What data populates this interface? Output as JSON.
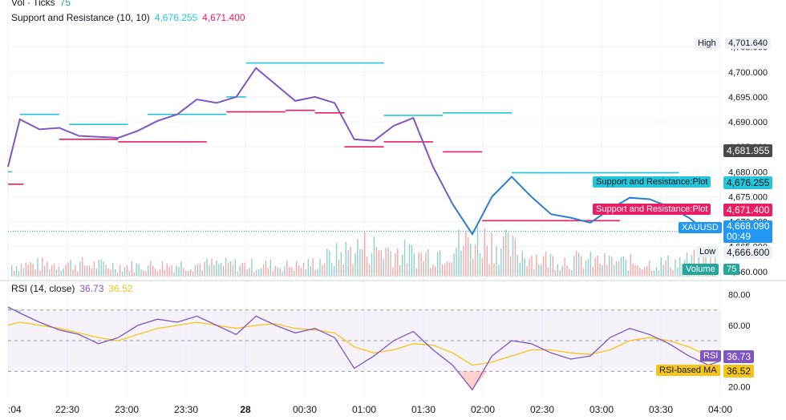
{
  "legend": {
    "vol_label": "Vol · Ticks",
    "vol_value": "75",
    "sr_label": "Support and Resistance (10, 10)",
    "sr_resistance": "4,676.255",
    "sr_support": "4,671.400"
  },
  "rsi_legend": {
    "label": "RSI (14, close)",
    "rsi_value": "36.73",
    "ma_value": "36.52"
  },
  "price_axis": {
    "ticks": [
      "4,705.000",
      "4,700.000",
      "4,695.000",
      "4,690.000",
      "4,685.000",
      "4,680.000",
      "4,675.000",
      "4,670.000",
      "4,665.000",
      "4,660.000"
    ],
    "high_label": "High",
    "high_value": "4,701.640",
    "crosshair_value": "4,681.955",
    "res_plot_label": "Support and Resistance:Plot",
    "res_plot_value": "4,676.255",
    "sup_plot_label": "Support and Resistance:Plot",
    "sup_plot_value": "4,671.400",
    "symbol": "XAUUSD",
    "last_price": "4,668.090",
    "countdown": "00:49",
    "low_label": "Low",
    "low_value": "4,666.600",
    "volume_label": "Volume",
    "volume_value": "75"
  },
  "rsi_axis": {
    "ticks": [
      "80.00",
      "60.00",
      "40.00",
      "20.00"
    ],
    "rsi_label": "RSI",
    "rsi_value": "36.73",
    "ma_label": "RSI-based MA",
    "ma_value": "36.52"
  },
  "time_axis": {
    "labels": [
      ":04",
      "22:30",
      "23:00",
      "23:30",
      "28",
      "00:30",
      "01:00",
      "01:30",
      "02:00",
      "02:30",
      "03:00",
      "03:30",
      "04:00"
    ]
  },
  "colors": {
    "price_line_early": "#7e57c2",
    "price_line_late": "#2a7fd4",
    "resistance": "#26c6da",
    "support": "#e91e63",
    "rsi": "#7e57c2",
    "rsi_ma": "#f5c518",
    "crosshair_tag": "#4a4a4a",
    "last_price_tag": "#2196f3",
    "volume_tag": "#26a69a"
  },
  "chart_data": [
    {
      "type": "line",
      "name": "XAUUSD",
      "x": [
        "22:04",
        "22:10",
        "22:20",
        "22:30",
        "22:40",
        "22:50",
        "23:00",
        "23:10",
        "23:20",
        "23:30",
        "23:40",
        "23:50",
        "00:00",
        "00:10",
        "00:20",
        "00:30",
        "00:40",
        "00:50",
        "01:00",
        "01:10",
        "01:20",
        "01:30",
        "01:40",
        "01:50",
        "02:00",
        "02:10",
        "02:20",
        "02:30",
        "02:40",
        "02:50",
        "03:00",
        "03:10",
        "03:20",
        "03:30",
        "03:40",
        "03:50",
        "04:00",
        "04:06"
      ],
      "y": [
        4681,
        4690.5,
        4688.5,
        4688.8,
        4687.2,
        4687.0,
        4686.8,
        4688.2,
        4690.2,
        4691.5,
        4694.5,
        4693.8,
        4695.0,
        4700.8,
        4697.5,
        4694.2,
        4695.0,
        4693.8,
        4686.5,
        4686.2,
        4689.2,
        4690.8,
        4681.0,
        4673.5,
        4667.5,
        4675.0,
        4679.0,
        4675.0,
        4671.5,
        4670.8,
        4669.8,
        4672.5,
        4674.8,
        4674.5,
        4673.0,
        4670.8,
        4667.8,
        4668.1
      ],
      "ylim": [
        4659,
        4708
      ]
    },
    {
      "type": "bar",
      "name": "Volume",
      "x": [
        "22:04",
        "22:30",
        "23:00",
        "23:30",
        "00:00",
        "00:30",
        "01:00",
        "01:30",
        "02:00",
        "02:30",
        "03:00",
        "03:30",
        "04:00"
      ],
      "values": [
        45,
        50,
        40,
        48,
        45,
        42,
        120,
        80,
        150,
        70,
        60,
        50,
        75
      ]
    },
    {
      "type": "line",
      "name": "RSI (14, close)",
      "x": [
        "22:04",
        "22:10",
        "22:20",
        "22:30",
        "22:40",
        "22:50",
        "23:00",
        "23:10",
        "23:20",
        "23:30",
        "23:40",
        "23:50",
        "00:00",
        "00:10",
        "00:20",
        "00:30",
        "00:40",
        "00:50",
        "01:00",
        "01:10",
        "01:20",
        "01:30",
        "01:40",
        "01:50",
        "02:00",
        "02:10",
        "02:20",
        "02:30",
        "02:40",
        "02:50",
        "03:00",
        "03:10",
        "03:20",
        "03:30",
        "03:40",
        "03:50",
        "04:00",
        "04:06"
      ],
      "y": [
        72,
        68,
        62,
        57,
        54,
        48,
        52,
        60,
        64,
        62,
        66,
        60,
        54,
        66,
        60,
        55,
        58,
        52,
        32,
        40,
        50,
        56,
        44,
        34,
        18,
        40,
        50,
        48,
        42,
        38,
        40,
        52,
        58,
        54,
        48,
        40,
        34,
        36.73
      ],
      "ma": [
        60,
        62,
        60,
        58,
        55,
        52,
        50,
        54,
        58,
        60,
        62,
        60,
        58,
        60,
        61,
        58,
        57,
        55,
        46,
        42,
        44,
        48,
        47,
        42,
        34,
        36,
        40,
        44,
        44,
        42,
        41,
        44,
        50,
        52,
        50,
        46,
        40,
        36.52
      ],
      "ylim": [
        15,
        85
      ],
      "bands": [
        30,
        50,
        70
      ]
    }
  ]
}
